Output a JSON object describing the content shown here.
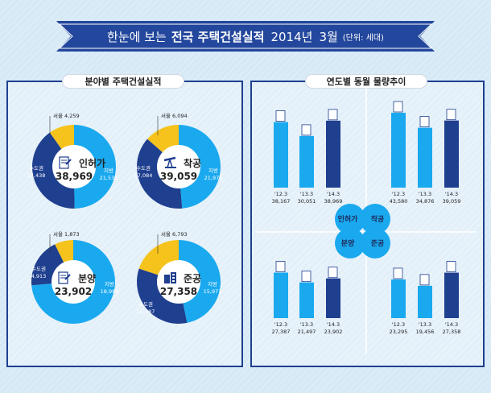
{
  "banner": {
    "pre": "한눈에 보는",
    "bold": "전국 주택건설실적",
    "year": "2014년",
    "month": "3월",
    "unit": "(단위: 세대)"
  },
  "left_panel": {
    "title": "분야별 주택건설실적"
  },
  "right_panel": {
    "title": "연도별 동월 물량추이"
  },
  "colors": {
    "jibang": "#1aa9ef",
    "sudo": "#1f3f8f",
    "seoul": "#f6c31c",
    "panel_border": "#1f3f8f"
  },
  "chart_data": [
    {
      "type": "pie",
      "title": "인허가",
      "total": "38,969",
      "icon": "document-icon",
      "slices": [
        {
          "label": "서울",
          "value": "4,259"
        },
        {
          "label": "수도권",
          "value": "17,438"
        },
        {
          "label": "지방",
          "value": "21,531"
        }
      ]
    },
    {
      "type": "pie",
      "title": "착공",
      "total": "39,059",
      "icon": "oil-pump-icon",
      "slices": [
        {
          "label": "서울",
          "value": "6,094"
        },
        {
          "label": "수도권",
          "value": "17,084"
        },
        {
          "label": "지방",
          "value": "21,975"
        }
      ]
    },
    {
      "type": "pie",
      "title": "분양",
      "total": "23,902",
      "icon": "contract-icon",
      "slices": [
        {
          "label": "서울",
          "value": "1,873"
        },
        {
          "label": "수도권",
          "value": "4,913"
        },
        {
          "label": "지방",
          "value": "18,989"
        }
      ]
    },
    {
      "type": "pie",
      "title": "준공",
      "total": "27,358",
      "icon": "building-icon",
      "slices": [
        {
          "label": "서울",
          "value": "6,793"
        },
        {
          "label": "수도권",
          "value": "11,387"
        },
        {
          "label": "지방",
          "value": "15,971"
        }
      ]
    },
    {
      "type": "bar",
      "name": "인허가",
      "categories": [
        "'12.3",
        "'13.3",
        "'14.3"
      ],
      "values": [
        38167,
        30051,
        38969
      ],
      "labels": [
        "38,167",
        "30,051",
        "38,969"
      ]
    },
    {
      "type": "bar",
      "name": "착공",
      "categories": [
        "'12.3",
        "'13.3",
        "'14.3"
      ],
      "values": [
        43580,
        34876,
        39059
      ],
      "labels": [
        "43,580",
        "34,876",
        "39,059"
      ]
    },
    {
      "type": "bar",
      "name": "분양",
      "categories": [
        "'12.3",
        "'13.3",
        "'14.3"
      ],
      "values": [
        27387,
        21497,
        23902
      ],
      "labels": [
        "27,387",
        "21,497",
        "23,902"
      ]
    },
    {
      "type": "bar",
      "name": "준공",
      "categories": [
        "'12.3",
        "'13.3",
        "'14.3"
      ],
      "values": [
        23295,
        19456,
        27358
      ],
      "labels": [
        "23,295",
        "19,456",
        "27,358"
      ]
    }
  ],
  "quadrant_labels": [
    "인허가",
    "착공",
    "분양",
    "준공"
  ]
}
